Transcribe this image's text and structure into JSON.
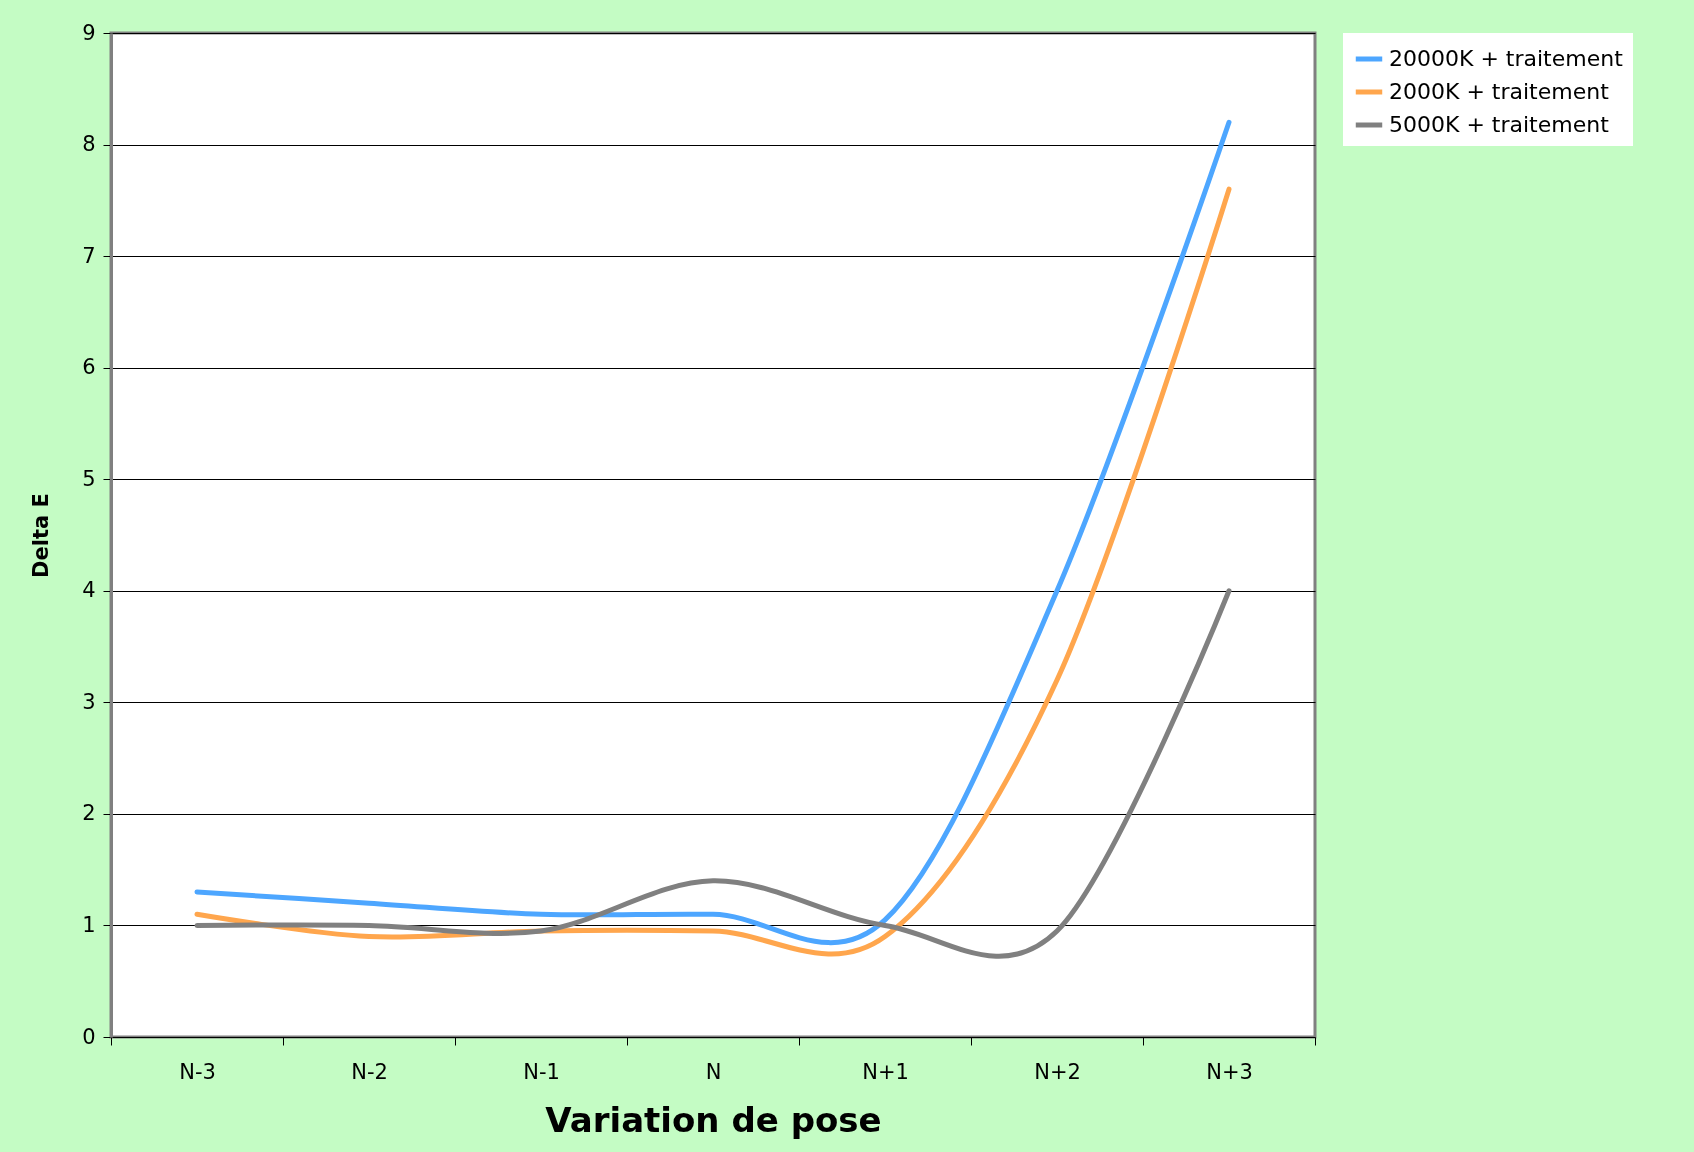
{
  "chart_data": {
    "type": "line",
    "xlabel": "Variation de pose",
    "ylabel": "Delta E",
    "categories": [
      "N-3",
      "N-2",
      "N-1",
      "N",
      "N+1",
      "N+2",
      "N+3"
    ],
    "series": [
      {
        "name": "20000K + traitement",
        "color": "#4da6ff",
        "values": [
          1.3,
          1.2,
          1.1,
          1.1,
          1.05,
          4.0,
          8.2
        ]
      },
      {
        "name": "2000K + traitement",
        "color": "#ffa64d",
        "values": [
          1.1,
          0.9,
          0.95,
          0.95,
          0.9,
          3.2,
          7.6
        ]
      },
      {
        "name": "5000K + traitement",
        "color": "#808080",
        "values": [
          1.0,
          1.0,
          0.95,
          1.4,
          1.0,
          0.95,
          4.0
        ]
      }
    ],
    "ylim": [
      0,
      9
    ],
    "yticks": [
      0,
      1,
      2,
      3,
      4,
      5,
      6,
      7,
      8,
      9
    ],
    "grid": "y",
    "legend": "right"
  }
}
